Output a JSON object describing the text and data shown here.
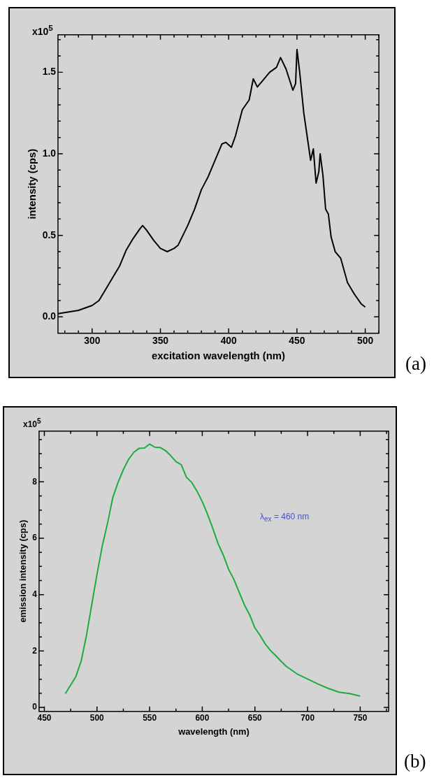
{
  "chart_data": [
    {
      "type": "line",
      "xlabel": "excitation wavelength (nm)",
      "ylabel": "intensity (cps)",
      "annotations": [
        "x10$^{5}$",
        "(a)"
      ],
      "marker": "none",
      "grid": false,
      "legend": false,
      "xlim": [
        275,
        510
      ],
      "ylim": [
        -0.1,
        1.73
      ],
      "xticks": [
        {
          "value": 280,
          "label": null
        },
        {
          "value": 290,
          "label": null
        },
        300,
        {
          "value": 310,
          "label": null
        },
        {
          "value": 320,
          "label": null
        },
        {
          "value": 330,
          "label": null
        },
        {
          "value": 340,
          "label": null
        },
        350,
        {
          "value": 360,
          "label": null
        },
        {
          "value": 370,
          "label": null
        },
        {
          "value": 380,
          "label": null
        },
        {
          "value": 390,
          "label": null
        },
        400,
        {
          "value": 410,
          "label": null
        },
        {
          "value": 420,
          "label": null
        },
        {
          "value": 430,
          "label": null
        },
        {
          "value": 440,
          "label": null
        },
        450,
        {
          "value": 460,
          "label": null
        },
        {
          "value": 470,
          "label": null
        },
        {
          "value": 480,
          "label": null
        },
        {
          "value": 490,
          "label": null
        },
        500,
        {
          "value": 510,
          "label": null
        }
      ],
      "yticks": [
        {
          "value": 0,
          "label": "0.0"
        },
        {
          "value": 0.1,
          "label": null
        },
        {
          "value": 0.2,
          "label": null
        },
        {
          "value": 0.3,
          "label": null
        },
        {
          "value": 0.4,
          "label": null
        },
        0.5,
        {
          "value": 0.6,
          "label": null
        },
        {
          "value": 0.7,
          "label": null
        },
        {
          "value": 0.8,
          "label": null
        },
        {
          "value": 0.9,
          "label": null
        },
        {
          "value": 1,
          "label": "1.0"
        },
        {
          "value": 1.1,
          "label": null
        },
        {
          "value": 1.2,
          "label": null
        },
        {
          "value": 1.3,
          "label": null
        },
        {
          "value": 1.4,
          "label": null
        },
        1.5,
        {
          "value": 1.6,
          "label": null
        },
        {
          "value": 1.7,
          "label": null
        }
      ],
      "series": [
        {
          "color": "#000000",
          "x": [
            275,
            290,
            300,
            305,
            310,
            315,
            320,
            325,
            330,
            335,
            337,
            340,
            345,
            350,
            355,
            360,
            363,
            370,
            375,
            380,
            385,
            390,
            395,
            398,
            402,
            405,
            410,
            415,
            418,
            421,
            425,
            430,
            435,
            438,
            442,
            447,
            449,
            450,
            452,
            455,
            460,
            462,
            464,
            466,
            467,
            469,
            471,
            473,
            475,
            478,
            482,
            487,
            492,
            497,
            500
          ],
          "values": [
            0.02,
            0.04,
            0.07,
            0.1,
            0.17,
            0.24,
            0.31,
            0.41,
            0.48,
            0.54,
            0.56,
            0.53,
            0.47,
            0.42,
            0.4,
            0.42,
            0.44,
            0.56,
            0.66,
            0.78,
            0.86,
            0.96,
            1.06,
            1.07,
            1.04,
            1.11,
            1.27,
            1.33,
            1.46,
            1.41,
            1.45,
            1.5,
            1.53,
            1.59,
            1.52,
            1.39,
            1.43,
            1.64,
            1.5,
            1.25,
            0.96,
            1.03,
            0.82,
            0.89,
            1.0,
            0.87,
            0.66,
            0.63,
            0.49,
            0.4,
            0.36,
            0.21,
            0.14,
            0.08,
            0.06
          ]
        }
      ]
    },
    {
      "type": "line",
      "xlabel": "wavelength (nm)",
      "ylabel": "emission intensity (cps)",
      "annotations": [
        "x10$^{5}$",
        "λ$_{ex}$ = 460 nm",
        "(b)"
      ],
      "marker": "none",
      "grid": false,
      "legend": false,
      "xlim": [
        445,
        777
      ],
      "ylim": [
        -0.14,
        9.8
      ],
      "xticks": [
        450,
        {
          "value": 475,
          "label": null
        },
        500,
        {
          "value": 525,
          "label": null
        },
        550,
        {
          "value": 575,
          "label": null
        },
        600,
        {
          "value": 625,
          "label": null
        },
        650,
        {
          "value": 675,
          "label": null
        },
        700,
        {
          "value": 725,
          "label": null
        },
        750,
        {
          "value": 775,
          "label": null
        }
      ],
      "yticks": [
        0,
        {
          "value": 0.5,
          "label": null
        },
        {
          "value": 1,
          "label": null
        },
        {
          "value": 1.5,
          "label": null
        },
        2,
        {
          "value": 2.5,
          "label": null
        },
        {
          "value": 3,
          "label": null
        },
        {
          "value": 3.5,
          "label": null
        },
        4,
        {
          "value": 4.5,
          "label": null
        },
        {
          "value": 5,
          "label": null
        },
        {
          "value": 5.5,
          "label": null
        },
        6,
        {
          "value": 6.5,
          "label": null
        },
        {
          "value": 7,
          "label": null
        },
        {
          "value": 7.5,
          "label": null
        },
        8,
        {
          "value": 8.5,
          "label": null
        },
        {
          "value": 9,
          "label": null
        },
        {
          "value": 9.5,
          "label": null
        }
      ],
      "series": [
        {
          "color": "#1aac3c",
          "x": [
            470,
            480,
            485,
            490,
            495,
            500,
            505,
            510,
            515,
            520,
            525,
            530,
            535,
            540,
            545,
            550,
            555,
            560,
            565,
            570,
            575,
            580,
            585,
            590,
            595,
            600,
            605,
            610,
            615,
            620,
            625,
            630,
            635,
            640,
            645,
            650,
            655,
            660,
            665,
            670,
            675,
            680,
            690,
            700,
            710,
            720,
            730,
            740,
            750
          ],
          "values": [
            0.49,
            1.1,
            1.65,
            2.55,
            3.64,
            4.72,
            5.72,
            6.53,
            7.44,
            7.98,
            8.43,
            8.8,
            9.05,
            9.19,
            9.2,
            9.34,
            9.23,
            9.22,
            9.11,
            8.93,
            8.72,
            8.61,
            8.16,
            7.98,
            7.67,
            7.3,
            6.85,
            6.35,
            5.81,
            5.4,
            4.9,
            4.54,
            4.09,
            3.64,
            3.28,
            2.82,
            2.55,
            2.24,
            2.01,
            1.83,
            1.63,
            1.45,
            1.19,
            1.01,
            0.83,
            0.67,
            0.54,
            0.49,
            0.4
          ]
        }
      ]
    }
  ]
}
